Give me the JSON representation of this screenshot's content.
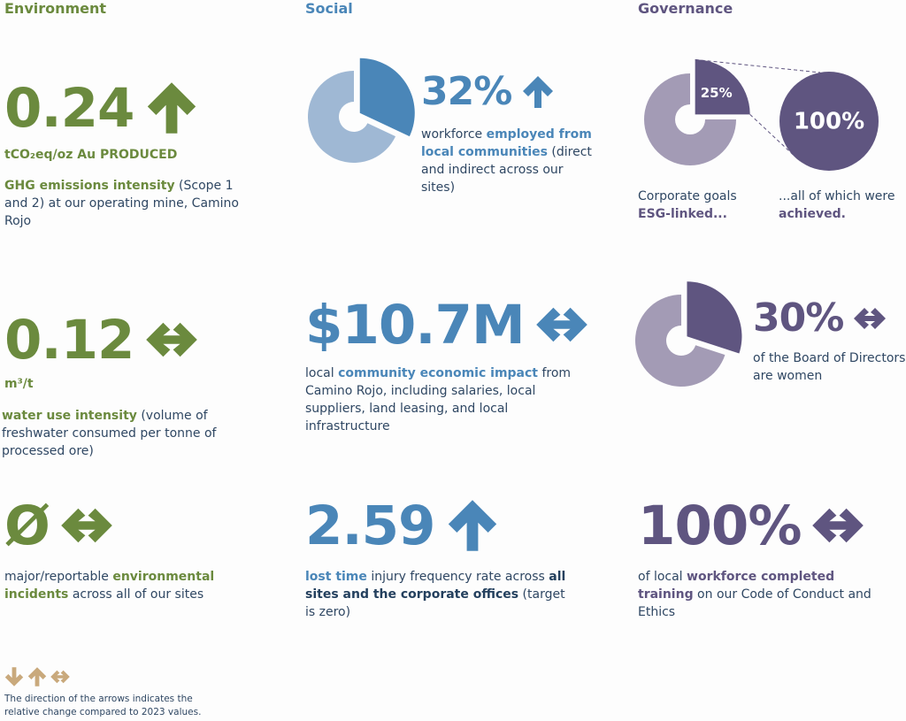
{
  "columns": [
    {
      "heading": "Environment",
      "color": "#6b8a3e",
      "light": "#9fb57a",
      "items": [
        {
          "figure": "0.24",
          "arrow": "up",
          "unit": "tCO₂eq/oz Au PRODUCED",
          "description": [
            {
              "text": "GHG emissions intensity",
              "strong": "accent"
            },
            {
              "text": " (Scope 1 and 2) at our operating mine, Camino Rojo"
            }
          ]
        },
        {
          "figure": "0.12",
          "arrow": "both",
          "unit": "m³/t",
          "description": [
            {
              "text": "water use intensity",
              "strong": "accent"
            },
            {
              "text": " (volume of freshwater consumed per tonne of processed ore)"
            }
          ]
        },
        {
          "figure": "Ø",
          "arrow": "both",
          "description": [
            {
              "text": "major/reportable "
            },
            {
              "text": "environmental incidents",
              "strong": "accent"
            },
            {
              "text": " across all of our sites"
            }
          ]
        }
      ]
    },
    {
      "heading": "Social",
      "color": "#4a86b8",
      "light": "#9fb8d4",
      "items": [
        {
          "figure": "32%",
          "arrow": "up",
          "pie": 32,
          "description": [
            {
              "text": "workforce "
            },
            {
              "text": "employed from local communities",
              "strong": "accent"
            },
            {
              "text": " (direct and indirect across our sites)"
            }
          ]
        },
        {
          "figure": "$10.7M",
          "arrow": "both",
          "description": [
            {
              "text": "local "
            },
            {
              "text": "community economic impact",
              "strong": "accent"
            },
            {
              "text": " from Camino Rojo, including salaries, local suppliers, land leasing, and local infrastructure"
            }
          ]
        },
        {
          "figure": "2.59",
          "arrow": "up",
          "description": [
            {
              "text": "lost time",
              "strong": "accent"
            },
            {
              "text": " injury frequency rate across "
            },
            {
              "text": "all sites and the corporate offices",
              "strong": "dark"
            },
            {
              "text": " (target is zero)"
            }
          ]
        }
      ]
    },
    {
      "heading": "Governance",
      "color": "#5f5580",
      "light": "#a39bb5",
      "items": [
        {
          "pie": {
            "value": 25,
            "label": "25%"
          },
          "callout": {
            "value": 100,
            "label": "100%"
          },
          "description": [
            {
              "text": "Corporate goals "
            },
            {
              "text": "ESG-linked...",
              "strong": "accent"
            }
          ],
          "callout_description": [
            {
              "text": "...all of which were "
            },
            {
              "text": "achieved.",
              "strong": "accent"
            }
          ]
        },
        {
          "figure": "30%",
          "arrow": "both",
          "pie": 30,
          "description": [
            {
              "text": "of the Board of Directors are women"
            }
          ]
        },
        {
          "figure": "100%",
          "arrow": "both",
          "description": [
            {
              "text": "of local "
            },
            {
              "text": "workforce completed training",
              "strong": "accent"
            },
            {
              "text": " on our Code of Conduct and Ethics"
            }
          ]
        }
      ]
    }
  ],
  "legend": {
    "arrows": [
      "down",
      "up",
      "both"
    ],
    "color": "#c9a97c",
    "note": "The direction of the arrows indicates the relative change compared to 2023 values."
  }
}
